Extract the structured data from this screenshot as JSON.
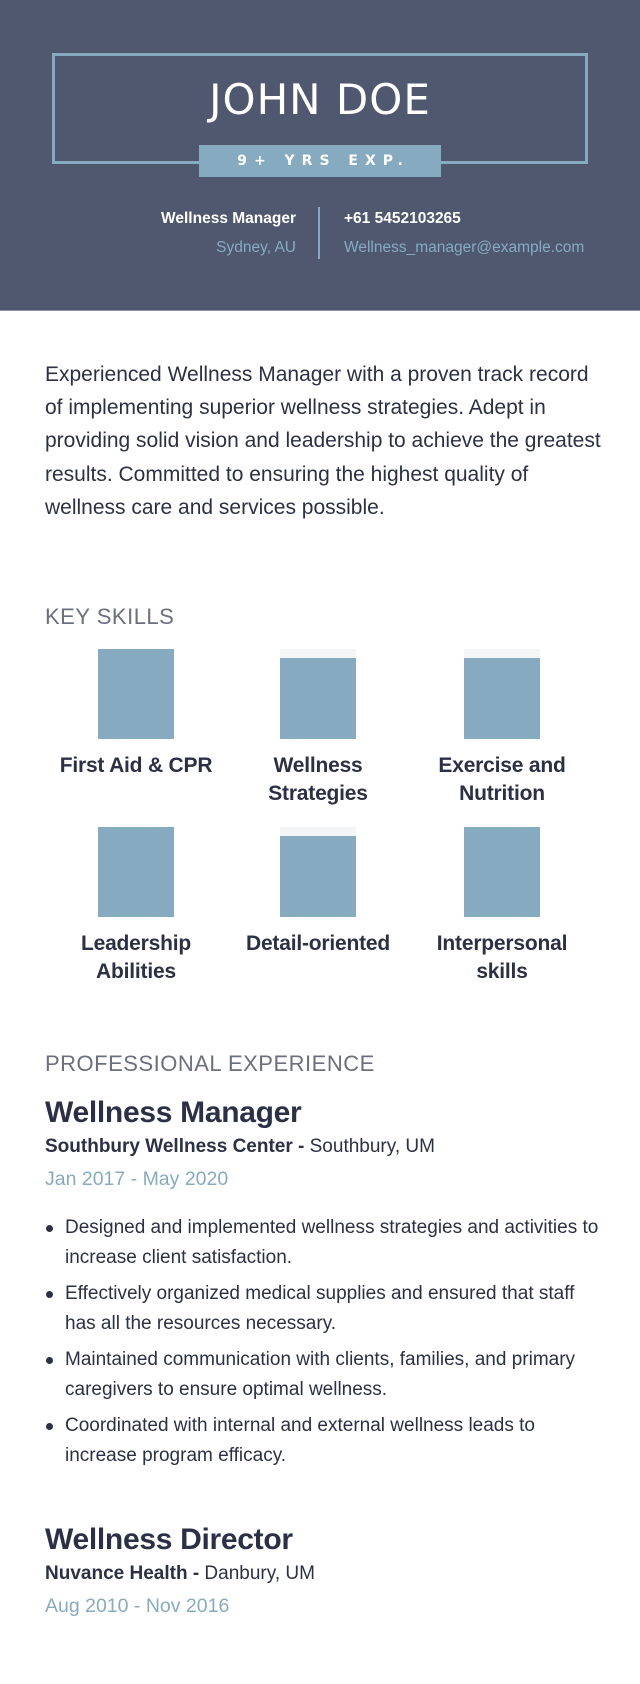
{
  "header": {
    "name": "JOHN DOE",
    "experience_badge": "9+ YRS EXP.",
    "title": "Wellness Manager",
    "location": "Sydney, AU",
    "phone": "+61 5452103265",
    "email": "Wellness_manager@example.com"
  },
  "summary": "Experienced Wellness Manager with a proven track record of implementing superior wellness strategies. Adept in providing solid vision and leadership to achieve the greatest results. Committed to ensuring the highest quality of wellness care and services possible.",
  "skills": {
    "title": "KEY SKILLS",
    "items": [
      {
        "label": "First Aid & CPR",
        "level": 100
      },
      {
        "label": "Wellness Strategies",
        "level": 90
      },
      {
        "label": "Exercise and Nutrition",
        "level": 90
      },
      {
        "label": "Leadership Abilities",
        "level": 100
      },
      {
        "label": "Detail-oriented",
        "level": 90
      },
      {
        "label": "Interpersonal skills",
        "level": 100
      }
    ]
  },
  "experience": {
    "title": "PROFESSIONAL EXPERIENCE",
    "jobs": [
      {
        "title": "Wellness Manager",
        "company": "Southbury Wellness Center -",
        "location": " Southbury, UM",
        "dates": "Jan 2017 - May 2020",
        "bullets": [
          "Designed and implemented wellness strategies and activities to increase client satisfaction.",
          "Effectively organized medical supplies and ensured that staff has all the resources necessary.",
          "Maintained communication with clients, families, and primary caregivers to ensure optimal wellness.",
          "Coordinated with internal and external wellness leads to increase program efficacy."
        ]
      },
      {
        "title": "Wellness Director",
        "company": "Nuvance Health -",
        "location": " Danbury, UM",
        "dates": "Aug 2010 - Nov 2016",
        "bullets": []
      }
    ]
  },
  "colors": {
    "header_bg": "#4f586f",
    "accent": "#86abc0",
    "text": "#2b3046",
    "section_title": "#6b6f80"
  }
}
